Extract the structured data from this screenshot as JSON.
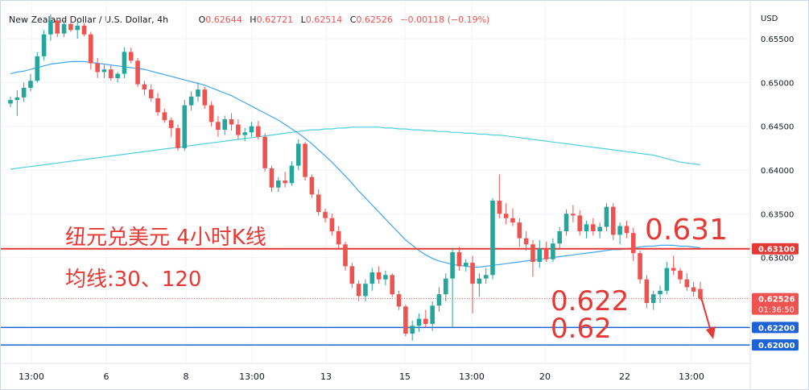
{
  "header": {
    "symbol": "New Zealand Dollar / U.S. Dollar, 4h",
    "open_label": "O",
    "open": "0.62644",
    "high_label": "H",
    "high": "0.62721",
    "low_label": "L",
    "low": "0.62514",
    "close_label": "C",
    "close": "0.62526",
    "change": "−0.00118 (−0.19%)"
  },
  "price_scale": {
    "currency": "USD",
    "ticks": [
      "0.65500",
      "0.65000",
      "0.64500",
      "0.64000",
      "0.63500",
      "0.63000"
    ]
  },
  "time_axis": {
    "ticks": [
      "13:00",
      "6",
      "8",
      "13:00",
      "13",
      "15",
      "13:00",
      "20",
      "22",
      "13:00"
    ]
  },
  "price_tags": {
    "resistance": "0.63100",
    "current_price": "0.62526",
    "countdown": "01:36:50",
    "support_1": "0.62200",
    "support_2": "0.62000"
  },
  "annotations": {
    "title": "纽元兑美元 4小时K线",
    "ma_note": "均线:30、120",
    "level_631": "0.631",
    "level_622": "0.622",
    "level_62": "0.62"
  },
  "colors": {
    "up": "#26a69a",
    "down": "#ef5350",
    "ma30": "#42a5f5",
    "ma120": "#4dd0e1",
    "resistance": "#e53935",
    "support": "#1e63d5",
    "annotation": "#e53935"
  },
  "chart_data": {
    "type": "candlestick",
    "series_ohlc": [
      [
        0.6476,
        0.6484,
        0.6472,
        0.648
      ],
      [
        0.648,
        0.6491,
        0.6462,
        0.6483
      ],
      [
        0.6483,
        0.65,
        0.6478,
        0.6494
      ],
      [
        0.6494,
        0.651,
        0.649,
        0.6502
      ],
      [
        0.6502,
        0.6535,
        0.65,
        0.653
      ],
      [
        0.653,
        0.656,
        0.6525,
        0.6555
      ],
      [
        0.6555,
        0.6578,
        0.6548,
        0.6571
      ],
      [
        0.6571,
        0.6573,
        0.6552,
        0.6556
      ],
      [
        0.6556,
        0.6572,
        0.6552,
        0.6567
      ],
      [
        0.6567,
        0.6576,
        0.6558,
        0.656
      ],
      [
        0.656,
        0.657,
        0.655,
        0.6565
      ],
      [
        0.6565,
        0.6568,
        0.6553,
        0.6555
      ],
      [
        0.6555,
        0.6558,
        0.6515,
        0.6522
      ],
      [
        0.6522,
        0.6528,
        0.6505,
        0.6512
      ],
      [
        0.6512,
        0.652,
        0.6505,
        0.6515
      ],
      [
        0.6515,
        0.652,
        0.6502,
        0.6505
      ],
      [
        0.6505,
        0.6512,
        0.65,
        0.651
      ],
      [
        0.651,
        0.654,
        0.6505,
        0.6535
      ],
      [
        0.6535,
        0.654,
        0.6522,
        0.6525
      ],
      [
        0.6525,
        0.6528,
        0.6495,
        0.6498
      ],
      [
        0.6498,
        0.6502,
        0.6485,
        0.6492
      ],
      [
        0.6492,
        0.6498,
        0.6478,
        0.6482
      ],
      [
        0.6482,
        0.6488,
        0.6462,
        0.6466
      ],
      [
        0.6466,
        0.647,
        0.6454,
        0.6457
      ],
      [
        0.6457,
        0.646,
        0.6438,
        0.6448
      ],
      [
        0.6448,
        0.6452,
        0.6422,
        0.6425
      ],
      [
        0.6425,
        0.648,
        0.6422,
        0.6474
      ],
      [
        0.6474,
        0.649,
        0.6468,
        0.6484
      ],
      [
        0.6484,
        0.65,
        0.6478,
        0.6492
      ],
      [
        0.6492,
        0.6495,
        0.647,
        0.6474
      ],
      [
        0.6474,
        0.6478,
        0.645,
        0.6455
      ],
      [
        0.6455,
        0.6462,
        0.6438,
        0.6446
      ],
      [
        0.6446,
        0.6462,
        0.644,
        0.6458
      ],
      [
        0.6458,
        0.6465,
        0.6445,
        0.6452
      ],
      [
        0.6452,
        0.6458,
        0.6435,
        0.644
      ],
      [
        0.644,
        0.6448,
        0.6433,
        0.6443
      ],
      [
        0.6443,
        0.6455,
        0.6438,
        0.645
      ],
      [
        0.645,
        0.6456,
        0.6435,
        0.6438
      ],
      [
        0.6438,
        0.6442,
        0.6398,
        0.6402
      ],
      [
        0.6402,
        0.6405,
        0.6375,
        0.638
      ],
      [
        0.638,
        0.6392,
        0.6375,
        0.6388
      ],
      [
        0.6388,
        0.6398,
        0.638,
        0.6385
      ],
      [
        0.6385,
        0.641,
        0.6382,
        0.6405
      ],
      [
        0.6405,
        0.6435,
        0.64,
        0.643
      ],
      [
        0.643,
        0.6432,
        0.6388,
        0.6392
      ],
      [
        0.6392,
        0.6395,
        0.6368,
        0.6372
      ],
      [
        0.6372,
        0.6378,
        0.6348,
        0.6352
      ],
      [
        0.6352,
        0.6356,
        0.634,
        0.6345
      ],
      [
        0.6345,
        0.635,
        0.6325,
        0.633
      ],
      [
        0.633,
        0.6336,
        0.631,
        0.6315
      ],
      [
        0.6315,
        0.6318,
        0.6285,
        0.629
      ],
      [
        0.629,
        0.6294,
        0.6265,
        0.627
      ],
      [
        0.627,
        0.6274,
        0.625,
        0.6256
      ],
      [
        0.6256,
        0.6275,
        0.625,
        0.627
      ],
      [
        0.627,
        0.6288,
        0.6262,
        0.6283
      ],
      [
        0.6283,
        0.629,
        0.627,
        0.6275
      ],
      [
        0.6275,
        0.6285,
        0.6268,
        0.628
      ],
      [
        0.628,
        0.6282,
        0.6255,
        0.6258
      ],
      [
        0.6258,
        0.6262,
        0.624,
        0.6244
      ],
      [
        0.6244,
        0.6246,
        0.621,
        0.6213
      ],
      [
        0.6213,
        0.6228,
        0.6205,
        0.6222
      ],
      [
        0.6222,
        0.6236,
        0.6215,
        0.623
      ],
      [
        0.623,
        0.624,
        0.622,
        0.6224
      ],
      [
        0.6224,
        0.625,
        0.6216,
        0.6245
      ],
      [
        0.6245,
        0.6266,
        0.6238,
        0.6258
      ],
      [
        0.6258,
        0.6282,
        0.625,
        0.6276
      ],
      [
        0.6276,
        0.6311,
        0.622,
        0.6306
      ],
      [
        0.6306,
        0.6312,
        0.6285,
        0.629
      ],
      [
        0.629,
        0.6298,
        0.6284,
        0.6294
      ],
      [
        0.6294,
        0.6302,
        0.6236,
        0.627
      ],
      [
        0.627,
        0.6282,
        0.6255,
        0.6276
      ],
      [
        0.6276,
        0.6288,
        0.627,
        0.628
      ],
      [
        0.628,
        0.6368,
        0.6275,
        0.6365
      ],
      [
        0.6365,
        0.6395,
        0.6345,
        0.635
      ],
      [
        0.635,
        0.6362,
        0.6338,
        0.6345
      ],
      [
        0.6345,
        0.6356,
        0.6336,
        0.634
      ],
      [
        0.634,
        0.6345,
        0.6312,
        0.6322
      ],
      [
        0.6322,
        0.633,
        0.6308,
        0.6315
      ],
      [
        0.6315,
        0.632,
        0.6278,
        0.6295
      ],
      [
        0.6295,
        0.632,
        0.6288,
        0.631
      ],
      [
        0.631,
        0.6318,
        0.6295,
        0.6298
      ],
      [
        0.6298,
        0.6322,
        0.6295,
        0.6316
      ],
      [
        0.6316,
        0.6335,
        0.631,
        0.633
      ],
      [
        0.633,
        0.6355,
        0.6325,
        0.635
      ],
      [
        0.635,
        0.636,
        0.634,
        0.6348
      ],
      [
        0.6348,
        0.6354,
        0.6325,
        0.633
      ],
      [
        0.633,
        0.6342,
        0.6322,
        0.6338
      ],
      [
        0.6338,
        0.6345,
        0.6325,
        0.633
      ],
      [
        0.633,
        0.634,
        0.6322,
        0.6335
      ],
      [
        0.6335,
        0.6362,
        0.633,
        0.6358
      ],
      [
        0.6358,
        0.6362,
        0.632,
        0.6326
      ],
      [
        0.6326,
        0.634,
        0.6315,
        0.6336
      ],
      [
        0.6336,
        0.6342,
        0.6322,
        0.6328
      ],
      [
        0.6328,
        0.6334,
        0.6296,
        0.6305
      ],
      [
        0.6305,
        0.6308,
        0.627,
        0.6275
      ],
      [
        0.6275,
        0.628,
        0.6242,
        0.6248
      ],
      [
        0.6248,
        0.6262,
        0.624,
        0.6258
      ],
      [
        0.6258,
        0.6268,
        0.6248,
        0.6262
      ],
      [
        0.6262,
        0.6295,
        0.6258,
        0.6288
      ],
      [
        0.6288,
        0.6302,
        0.628,
        0.6285
      ],
      [
        0.6285,
        0.6288,
        0.627,
        0.6275
      ],
      [
        0.6275,
        0.6282,
        0.6262,
        0.6266
      ],
      [
        0.6266,
        0.6272,
        0.6255,
        0.6261
      ],
      [
        0.6264,
        0.6272,
        0.6251,
        0.6253
      ]
    ],
    "ma30": [
      0.651,
      0.6512,
      0.6513,
      0.6515,
      0.6517,
      0.6519,
      0.6521,
      0.6522,
      0.6523,
      0.6524,
      0.6524,
      0.6524,
      0.6523,
      0.6522,
      0.6521,
      0.652,
      0.6519,
      0.6518,
      0.6517,
      0.6516,
      0.6515,
      0.6513,
      0.6511,
      0.6509,
      0.6507,
      0.6505,
      0.6503,
      0.6501,
      0.6499,
      0.6497,
      0.6494,
      0.6491,
      0.6488,
      0.6485,
      0.6481,
      0.6477,
      0.6473,
      0.6469,
      0.6465,
      0.6461,
      0.6457,
      0.6452,
      0.6447,
      0.6442,
      0.6436,
      0.643,
      0.6423,
      0.6416,
      0.6409,
      0.6401,
      0.6393,
      0.6385,
      0.6376,
      0.6368,
      0.636,
      0.6352,
      0.6344,
      0.6336,
      0.6328,
      0.632,
      0.6314,
      0.6308,
      0.6303,
      0.6299,
      0.6296,
      0.6294,
      0.6292,
      0.6291,
      0.629,
      0.6289,
      0.6289,
      0.629,
      0.6291,
      0.6292,
      0.6293,
      0.6294,
      0.6295,
      0.6296,
      0.6297,
      0.6298,
      0.6299,
      0.63,
      0.6301,
      0.6302,
      0.6303,
      0.6304,
      0.6305,
      0.6306,
      0.6307,
      0.6308,
      0.6309,
      0.6309,
      0.631,
      0.6311,
      0.6312,
      0.6313,
      0.6313,
      0.6314,
      0.6314,
      0.6314,
      0.6313,
      0.6313,
      0.6312,
      0.6311
    ],
    "ma120": [
      0.6401,
      0.6402,
      0.6403,
      0.6404,
      0.6405,
      0.6406,
      0.6407,
      0.6408,
      0.6409,
      0.641,
      0.6411,
      0.6412,
      0.6413,
      0.6414,
      0.6415,
      0.6416,
      0.6417,
      0.6418,
      0.6419,
      0.642,
      0.6421,
      0.6422,
      0.6423,
      0.6424,
      0.6425,
      0.6426,
      0.6427,
      0.6428,
      0.6429,
      0.643,
      0.6431,
      0.6432,
      0.6433,
      0.6434,
      0.6435,
      0.6436,
      0.6437,
      0.6438,
      0.6439,
      0.644,
      0.6441,
      0.6442,
      0.6443,
      0.6444,
      0.6445,
      0.6446,
      0.6446,
      0.6447,
      0.6447,
      0.6448,
      0.6448,
      0.6449,
      0.6449,
      0.6449,
      0.6449,
      0.6449,
      0.6448,
      0.6448,
      0.6447,
      0.6447,
      0.6446,
      0.6446,
      0.6445,
      0.6445,
      0.6444,
      0.6444,
      0.6443,
      0.6443,
      0.6442,
      0.6442,
      0.6441,
      0.6441,
      0.644,
      0.644,
      0.6439,
      0.6438,
      0.6437,
      0.6436,
      0.6435,
      0.6434,
      0.6433,
      0.6432,
      0.6431,
      0.643,
      0.6429,
      0.6428,
      0.6427,
      0.6426,
      0.6425,
      0.6424,
      0.6423,
      0.6422,
      0.6421,
      0.642,
      0.6419,
      0.6418,
      0.6417,
      0.6415,
      0.6413,
      0.6411,
      0.6409,
      0.6408,
      0.6407,
      0.6406
    ],
    "horizontal_levels": [
      0.631,
      0.622,
      0.62
    ],
    "y_range": [
      0.619,
      0.6575
    ],
    "x_labels": [
      "13:00",
      "6",
      "8",
      "13:00",
      "13",
      "15",
      "13:00",
      "20",
      "22",
      "13:00"
    ]
  }
}
